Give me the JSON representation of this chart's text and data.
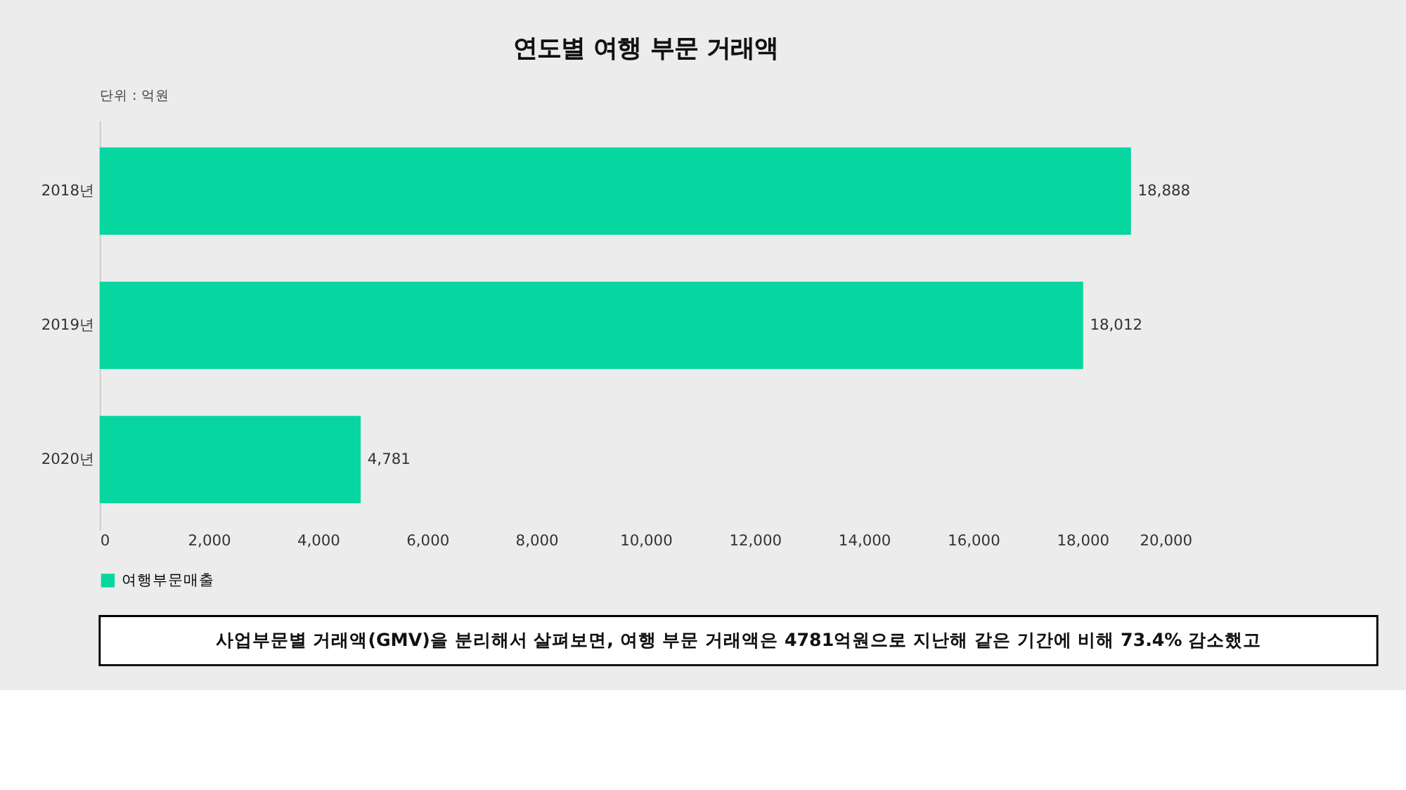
{
  "chart_data": {
    "type": "bar",
    "orientation": "horizontal",
    "title": "연도별 여행 부문 거래액",
    "categories": [
      "2018년",
      "2019년",
      "2020년"
    ],
    "series": [
      {
        "name": "여행부문매출",
        "color": "#08d6a0",
        "values": [
          18888,
          18012,
          4781
        ],
        "value_labels": [
          "18,888",
          "18,012",
          "4,781"
        ]
      }
    ],
    "xlim": [
      0,
      20000
    ],
    "xticks": [
      0,
      {
        "value": 2000,
        "label": "2,000"
      },
      {
        "value": 4000,
        "label": "4,000"
      },
      {
        "value": 6000,
        "label": "6,000"
      },
      {
        "value": 8000,
        "label": "8,000"
      },
      {
        "value": 10000,
        "label": "10,000"
      },
      {
        "value": 12000,
        "label": "12,000"
      },
      {
        "value": 14000,
        "label": "14,000"
      },
      {
        "value": 16000,
        "label": "16,000"
      },
      {
        "value": 18000,
        "label": "18,000"
      },
      {
        "value": 20000,
        "label": "20,000"
      }
    ],
    "grid": false,
    "legend": "bottom",
    "annotations": [
      "단위 : 억원",
      "사업부문별 거래액(GMV)을 분리해서 살펴보면, 여행 부문 거래액은 4781억원으로 지난해 같은 기간에 비해 73.4% 감소했고"
    ]
  }
}
